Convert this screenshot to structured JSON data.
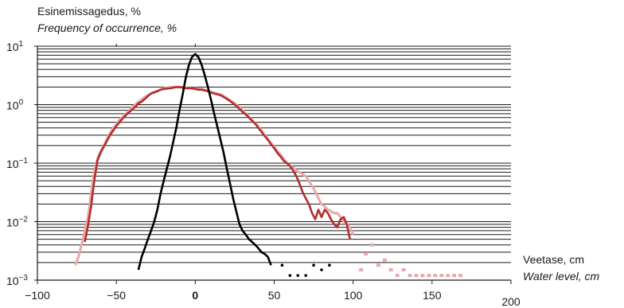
{
  "chart_data": {
    "type": "line",
    "ylabel": "Esinemissagedus, %",
    "ylabel_en": "Frequency of occurrence, %",
    "xlabel": "Veetase, cm",
    "xlabel_en": "Water level, cm",
    "xlim": [
      -100,
      200
    ],
    "ylim": [
      0.001,
      10
    ],
    "yscale": "log",
    "grid": "horizontal (minor log lines)",
    "x_ticks": [
      {
        "value": -100,
        "label": "−100"
      },
      {
        "value": -50,
        "label": "−50"
      },
      {
        "value": 0,
        "label": "0"
      },
      {
        "value": 50,
        "label": "50"
      },
      {
        "value": 100,
        "label": "100"
      },
      {
        "value": 150,
        "label": "150"
      },
      {
        "value": 200,
        "label": "200"
      }
    ],
    "y_ticks": [
      {
        "value": 10,
        "base": "10",
        "exp": "1"
      },
      {
        "value": 1,
        "base": "10",
        "exp": "0"
      },
      {
        "value": 0.1,
        "base": "10",
        "exp": "−1"
      },
      {
        "value": 0.01,
        "base": "10",
        "exp": "−2"
      },
      {
        "value": 0.001,
        "base": "10",
        "exp": "−3"
      }
    ],
    "series": [
      {
        "color": "#e8aaaa",
        "style": "line",
        "x": [
          -76,
          -74,
          -72,
          -70,
          -68,
          -66,
          -64,
          -62,
          -60,
          -58,
          -56,
          -54,
          -52,
          -50,
          -48,
          -46,
          -44,
          -42,
          -40,
          -38,
          -36,
          -34,
          -32,
          -30,
          -28,
          -26,
          -24,
          -22,
          -20,
          -18,
          -16,
          -14,
          -12,
          -10,
          -8,
          -6,
          -4,
          -2,
          0,
          2,
          4,
          6,
          8,
          10,
          12,
          14,
          16,
          18,
          20,
          22,
          24,
          26,
          28,
          30,
          32,
          34,
          36,
          38,
          40,
          42,
          44,
          46,
          48,
          50,
          52,
          54,
          56,
          58,
          60,
          62,
          64,
          66,
          68,
          70,
          72,
          74,
          76,
          78,
          80,
          82,
          84,
          86,
          88,
          90,
          92,
          94,
          96,
          98,
          100
        ],
        "y": [
          0.0018,
          0.0025,
          0.004,
          0.007,
          0.012,
          0.03,
          0.07,
          0.12,
          0.16,
          0.2,
          0.26,
          0.33,
          0.4,
          0.46,
          0.55,
          0.62,
          0.7,
          0.78,
          0.9,
          1.0,
          1.12,
          1.22,
          1.35,
          1.45,
          1.55,
          1.65,
          1.7,
          1.8,
          1.9,
          1.95,
          2.0,
          2.0,
          2.0,
          2.0,
          2.0,
          1.95,
          1.95,
          1.9,
          1.9,
          1.85,
          1.85,
          1.8,
          1.7,
          1.65,
          1.6,
          1.55,
          1.5,
          1.4,
          1.3,
          1.2,
          1.1,
          1.0,
          0.9,
          0.8,
          0.7,
          0.62,
          0.55,
          0.48,
          0.42,
          0.36,
          0.3,
          0.26,
          0.22,
          0.19,
          0.16,
          0.14,
          0.12,
          0.1,
          0.09,
          0.085,
          0.075,
          0.07,
          0.065,
          0.06,
          0.05,
          0.04,
          0.033,
          0.025,
          0.02,
          0.018,
          0.016,
          0.015,
          0.014,
          0.014,
          0.012,
          0.01,
          0.009,
          0.008,
          0.006
        ]
      },
      {
        "color": "#b22f2f",
        "style": "line",
        "x": [
          -70,
          -68,
          -66,
          -64,
          -62,
          -60,
          -58,
          -56,
          -54,
          -52,
          -50,
          -48,
          -46,
          -44,
          -42,
          -40,
          -38,
          -36,
          -34,
          -32,
          -30,
          -28,
          -26,
          -24,
          -22,
          -20,
          -18,
          -16,
          -14,
          -12,
          -10,
          -8,
          -6,
          -4,
          -2,
          0,
          2,
          4,
          6,
          8,
          10,
          12,
          14,
          16,
          18,
          20,
          22,
          24,
          26,
          28,
          30,
          32,
          34,
          36,
          38,
          40,
          42,
          44,
          46,
          48,
          50,
          52,
          54,
          56,
          58,
          60,
          62,
          64,
          66,
          68,
          70,
          72,
          74,
          76,
          78,
          80,
          82,
          84,
          86,
          88,
          90,
          92,
          94,
          96,
          98
        ],
        "y": [
          0.0045,
          0.0085,
          0.018,
          0.05,
          0.11,
          0.15,
          0.19,
          0.24,
          0.3,
          0.36,
          0.43,
          0.5,
          0.58,
          0.66,
          0.74,
          0.82,
          0.92,
          1.05,
          1.12,
          1.25,
          1.4,
          1.55,
          1.62,
          1.7,
          1.8,
          1.85,
          1.88,
          1.9,
          1.95,
          2.0,
          2.0,
          1.95,
          1.9,
          1.92,
          1.9,
          1.85,
          1.8,
          1.8,
          1.75,
          1.7,
          1.6,
          1.55,
          1.5,
          1.45,
          1.35,
          1.25,
          1.15,
          1.05,
          0.95,
          0.85,
          0.75,
          0.68,
          0.6,
          0.53,
          0.47,
          0.4,
          0.34,
          0.29,
          0.25,
          0.21,
          0.18,
          0.15,
          0.13,
          0.11,
          0.1,
          0.09,
          0.075,
          0.06,
          0.045,
          0.032,
          0.025,
          0.02,
          0.014,
          0.011,
          0.016,
          0.012,
          0.016,
          0.014,
          0.011,
          0.009,
          0.008,
          0.011,
          0.012,
          0.009,
          0.005
        ]
      },
      {
        "color": "#000000",
        "style": "line",
        "x": [
          -36,
          -34,
          -32,
          -30,
          -28,
          -26,
          -24,
          -22,
          -20,
          -18,
          -16,
          -14,
          -12,
          -10,
          -8,
          -6,
          -4,
          -2,
          0,
          2,
          4,
          6,
          8,
          10,
          12,
          14,
          16,
          18,
          20,
          22,
          24,
          26,
          28,
          30,
          32,
          34,
          36,
          38,
          40,
          42,
          44,
          46,
          48
        ],
        "y": [
          0.0015,
          0.0025,
          0.0035,
          0.005,
          0.007,
          0.01,
          0.016,
          0.03,
          0.05,
          0.08,
          0.13,
          0.23,
          0.4,
          0.8,
          1.5,
          2.9,
          4.8,
          6.6,
          7.3,
          6.5,
          4.8,
          3.2,
          2.0,
          1.2,
          0.7,
          0.42,
          0.25,
          0.15,
          0.08,
          0.045,
          0.025,
          0.015,
          0.009,
          0.007,
          0.006,
          0.005,
          0.0045,
          0.004,
          0.0035,
          0.003,
          0.0028,
          0.0025,
          0.0018
        ]
      },
      {
        "color": "#000000",
        "style": "points",
        "x": [
          55,
          60,
          65,
          70,
          75,
          80,
          85
        ],
        "y": [
          0.0018,
          0.0012,
          0.0012,
          0.0012,
          0.0018,
          0.0015,
          0.0018
        ]
      },
      {
        "color": "#e8aaaa",
        "style": "points",
        "x": [
          105,
          108,
          112,
          116,
          120,
          124,
          128,
          132,
          136,
          140,
          144,
          148,
          152,
          156,
          160,
          164,
          168
        ],
        "y": [
          0.0015,
          0.0028,
          0.004,
          0.0018,
          0.0022,
          0.0015,
          0.0012,
          0.0015,
          0.0012,
          0.0012,
          0.0012,
          0.0012,
          0.0012,
          0.0012,
          0.0012,
          0.0012,
          0.0012
        ]
      }
    ]
  }
}
